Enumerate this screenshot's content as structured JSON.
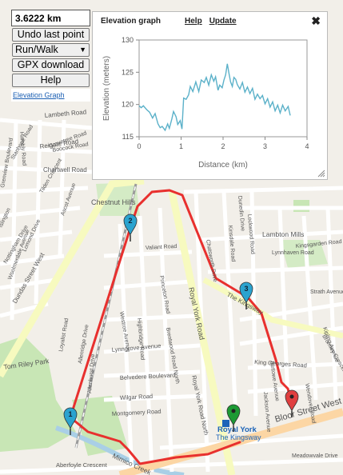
{
  "controls": {
    "distance": "3.6222 km",
    "undo_label": "Undo last point",
    "mode_value": "Run/Walk",
    "gpx_label": "GPX download",
    "help_label": "Help",
    "elevation_link": "Elevation Graph"
  },
  "elevation_panel": {
    "title": "Elevation graph",
    "help_label": "Help",
    "update_label": "Update",
    "close_glyph": "✖",
    "close_icon": "close-icon",
    "resize_icon": "resize-grip-icon"
  },
  "chart_data": {
    "type": "line",
    "title": "",
    "xlabel": "Distance (km)",
    "ylabel": "Elevation (meters)",
    "xlim": [
      0,
      4
    ],
    "ylim": [
      115,
      130
    ],
    "xticks": [
      0,
      1,
      2,
      3,
      4
    ],
    "yticks": [
      115,
      120,
      125,
      130
    ],
    "line_color": "#5bb1c9",
    "x": [
      0,
      0.05,
      0.1,
      0.18,
      0.25,
      0.32,
      0.38,
      0.45,
      0.5,
      0.55,
      0.62,
      0.68,
      0.72,
      0.78,
      0.82,
      0.88,
      0.92,
      0.98,
      1.02,
      1.06,
      1.12,
      1.18,
      1.22,
      1.28,
      1.35,
      1.42,
      1.48,
      1.55,
      1.6,
      1.66,
      1.72,
      1.78,
      1.82,
      1.88,
      1.92,
      1.98,
      2.02,
      2.06,
      2.1,
      2.14,
      2.18,
      2.22,
      2.26,
      2.3,
      2.34,
      2.4,
      2.46,
      2.52,
      2.58,
      2.64,
      2.7,
      2.76,
      2.82,
      2.88,
      2.94,
      3.0,
      3.06,
      3.12,
      3.18,
      3.24,
      3.3,
      3.36,
      3.42,
      3.48,
      3.55,
      3.6
    ],
    "y": [
      119.8,
      119.5,
      119.8,
      119.2,
      118.8,
      117.9,
      118.6,
      117.0,
      116.4,
      116.6,
      116.0,
      117.0,
      116.3,
      117.8,
      118.9,
      118.1,
      116.9,
      117.5,
      116.2,
      121.0,
      120.8,
      121.5,
      122.8,
      122.0,
      123.5,
      122.0,
      123.8,
      123.4,
      124.2,
      123.0,
      124.6,
      123.6,
      124.3,
      122.2,
      123.0,
      122.6,
      123.8,
      124.6,
      126.3,
      124.8,
      123.5,
      122.8,
      124.2,
      123.9,
      123.1,
      122.4,
      123.4,
      121.9,
      122.7,
      121.7,
      122.5,
      120.8,
      121.6,
      120.9,
      121.4,
      120.1,
      120.9,
      119.6,
      120.4,
      119.0,
      119.9,
      118.7,
      119.9,
      119.0,
      119.7,
      118.3
    ]
  },
  "map": {
    "streets": [
      {
        "text": "Lambeth Road"
      },
      {
        "text": "Reigate Road"
      },
      {
        "text": "Chartwell Road"
      },
      {
        "text": "Lynngrove Avenue"
      },
      {
        "text": "Belvedere Boulevard"
      },
      {
        "text": "Wilgar Road"
      },
      {
        "text": "Montgomery Road"
      },
      {
        "text": "Aberfoyle Crescent"
      },
      {
        "text": "Dundas Street West"
      },
      {
        "text": "Royal York Road"
      },
      {
        "text": "Royal York Road North"
      },
      {
        "text": "Bloor Street West"
      },
      {
        "text": "The Kingsway"
      },
      {
        "text": "Lambton Mills"
      },
      {
        "text": "Kingsgarden Road"
      },
      {
        "text": "Strath Avenue"
      },
      {
        "text": "King Georges Road"
      },
      {
        "text": "Meadowvale Drive"
      },
      {
        "text": "Chestnut Hills"
      },
      {
        "text": "Tom Riley Park"
      },
      {
        "text": "Mimico Creek"
      },
      {
        "text": "Valiant Road"
      },
      {
        "text": "Princeton Road"
      },
      {
        "text": "Westroe Avenue"
      },
      {
        "text": "Highbridge Road"
      },
      {
        "text": "Brentwood Road North"
      },
      {
        "text": "Wendover Road"
      },
      {
        "text": "Jackson Avenue"
      },
      {
        "text": "Allanhurst Drive"
      },
      {
        "text": "Kinsdale Road"
      },
      {
        "text": "Lockwood Road"
      },
      {
        "text": "Dunedin Drive"
      },
      {
        "text": "Bettowe Avenue"
      },
      {
        "text": "Loyalist Road"
      },
      {
        "text": "Allenridge Drive"
      },
      {
        "text": "Islington"
      },
      {
        "text": "Lomond Drive"
      },
      {
        "text": "Tilden Crescent"
      },
      {
        "text": "Grenview Boulevard"
      },
      {
        "text": "Hambly Road"
      },
      {
        "text": "Grovetree Road"
      },
      {
        "text": "Stanhope Road"
      },
      {
        "text": "Ascot Avenue"
      },
      {
        "text": "Woolmerdale Avenue"
      },
      {
        "text": "Chatsworth Drive"
      },
      {
        "text": "Bromley Crescent"
      },
      {
        "text": "Kipling Avenue"
      },
      {
        "text": "Nottingham Drive"
      },
      {
        "text": "Lynnhaven Road"
      },
      {
        "text": "Boocock Road"
      }
    ],
    "station_label": "Royal York",
    "station_sub": "The Kingsway",
    "markers": [
      {
        "label": "1",
        "color": "#2aa3cf",
        "icon": "map-pin-icon"
      },
      {
        "label": "2",
        "color": "#2aa3cf",
        "icon": "map-pin-icon"
      },
      {
        "label": "3",
        "color": "#2aa3cf",
        "icon": "map-pin-icon"
      },
      {
        "label": "",
        "color": "#1d9a34",
        "icon": "start-pin-icon"
      },
      {
        "label": "",
        "color": "#e03f3f",
        "icon": "end-pin-icon"
      }
    ],
    "route_color": "#e8302e"
  }
}
